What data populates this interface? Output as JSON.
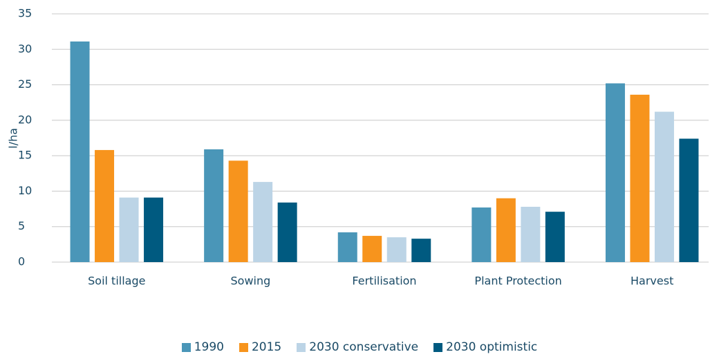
{
  "chart_data": {
    "type": "bar",
    "y_label": "l/ha",
    "categories": [
      "Soil tillage",
      "Sowing",
      "Fertilisation",
      "Plant Protection",
      "Harvest"
    ],
    "series": [
      {
        "name": "1990",
        "color": "#4a96b8",
        "values": [
          31.1,
          15.9,
          4.2,
          7.7,
          25.2
        ]
      },
      {
        "name": "2015",
        "color": "#f7941d",
        "values": [
          15.8,
          14.3,
          3.7,
          9.0,
          23.6
        ]
      },
      {
        "name": "2030 conservative",
        "color": "#bcd4e6",
        "values": [
          9.1,
          11.3,
          3.5,
          7.8,
          21.2
        ]
      },
      {
        "name": "2030 optimistic",
        "color": "#005a80",
        "values": [
          9.1,
          8.4,
          3.3,
          7.1,
          17.4
        ]
      }
    ],
    "ylim": [
      0,
      35
    ],
    "yticks": [
      0,
      5,
      10,
      15,
      20,
      25,
      30,
      35
    ],
    "grid": true,
    "legend": "bottom"
  }
}
